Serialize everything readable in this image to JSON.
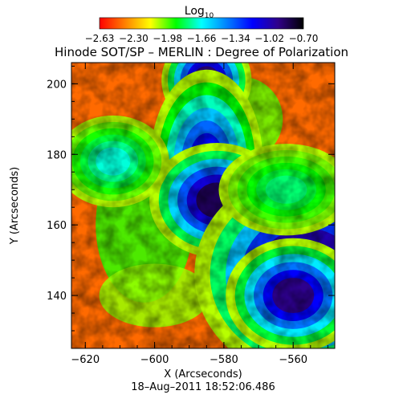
{
  "chart_data": {
    "type": "heatmap",
    "title": "Hinode SOT/SP – MERLIN : Degree of Polarization",
    "colorbar": {
      "label_base": "Log",
      "label_sub": "10",
      "ticks": [
        "−2.63",
        "−2.30",
        "−1.98",
        "−1.66",
        "−1.34",
        "−1.02",
        "−0.70"
      ],
      "range": [
        -2.63,
        -0.7
      ],
      "colors": [
        "#ff0000",
        "#ff8000",
        "#ffff00",
        "#00ff00",
        "#00ffff",
        "#0080ff",
        "#0000ff",
        "#30008a",
        "#000000"
      ]
    },
    "xlabel": "X (Arcseconds)",
    "ylabel": "Y (Arcseconds)",
    "xlim": [
      -624,
      -548
    ],
    "ylim": [
      125,
      206
    ],
    "xticks": [
      {
        "value": -620,
        "label": "−620"
      },
      {
        "value": -600,
        "label": "−600"
      },
      {
        "value": -580,
        "label": "−580"
      },
      {
        "value": -560,
        "label": "−560"
      }
    ],
    "yticks": [
      {
        "value": 140,
        "label": "140"
      },
      {
        "value": 160,
        "label": "160"
      },
      {
        "value": 180,
        "label": "180"
      },
      {
        "value": 200,
        "label": "200"
      }
    ],
    "features": [
      {
        "x": -585,
        "y": 201,
        "rx": 4,
        "ry": 4,
        "value": -0.9
      },
      {
        "x": -585,
        "y": 178,
        "rx": 5,
        "ry": 8,
        "value": -1.2
      },
      {
        "x": -582,
        "y": 167,
        "rx": 6,
        "ry": 5,
        "value": -0.85
      },
      {
        "x": -556,
        "y": 146,
        "rx": 10,
        "ry": 9,
        "value": -0.75
      },
      {
        "x": -560,
        "y": 140,
        "rx": 6,
        "ry": 5,
        "value": -0.95
      },
      {
        "x": -612,
        "y": 178,
        "rx": 5,
        "ry": 4,
        "value": -1.7
      },
      {
        "x": -562,
        "y": 170,
        "rx": 6,
        "ry": 4,
        "value": -1.8
      }
    ]
  },
  "footer": {
    "timestamp": "18–Aug–2011  18:52:06.486"
  }
}
